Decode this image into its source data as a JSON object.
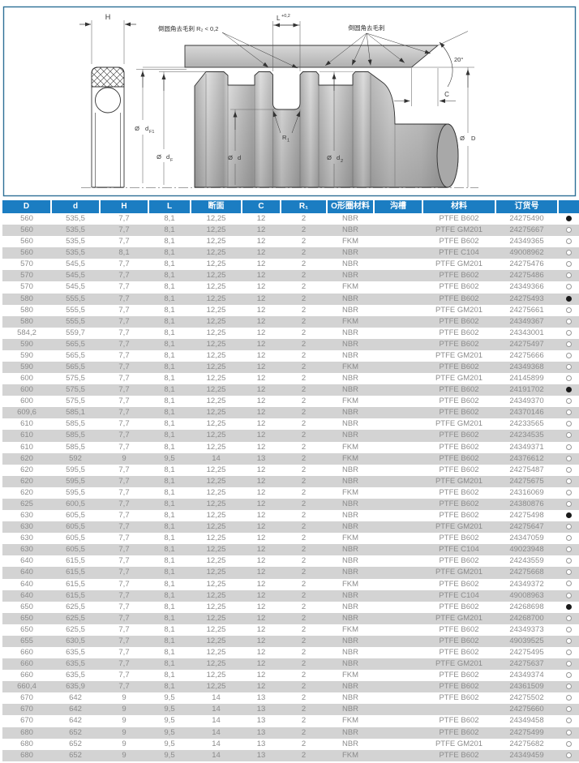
{
  "colors": {
    "header_bg": "#1b7dc2",
    "header_text": "#ffffff",
    "row_alt": "#d3d3d3",
    "table_text": "#8c8c8c",
    "panel_border": "#2e7096",
    "dot_filled": "#1a1a1a",
    "dot_empty_border": "#999999",
    "diagram_line": "#333333"
  },
  "diagram": {
    "notes": {
      "left": "倒圆角去毛刺  R₂ < 0,2",
      "right": "倒圆角去毛刺"
    },
    "dims": {
      "h": "H",
      "l": "L",
      "l_tol": "+0,2",
      "angle": "20°",
      "c": "C",
      "r1": "R",
      "r1_sub": "1",
      "dia": "Ø",
      "df1": "d",
      "df1_sub": "F1",
      "df": "d",
      "df_sub": "F",
      "d": "d",
      "d2": "d",
      "d2_sub": "2",
      "D": "D"
    }
  },
  "table": {
    "columns": [
      "D",
      "d",
      "H",
      "L",
      "断面",
      "C",
      "R₁",
      "O形圈材料",
      "沟槽",
      "材料",
      "订货号",
      ""
    ],
    "rows": [
      [
        "560",
        "535,5",
        "7,7",
        "8,1",
        "12,25",
        "12",
        "2",
        "NBR",
        "",
        "PTFE B602",
        "24275490",
        "●"
      ],
      [
        "560",
        "535,5",
        "7,7",
        "8,1",
        "12,25",
        "12",
        "2",
        "NBR",
        "",
        "PTFE GM201",
        "24275667",
        "○"
      ],
      [
        "560",
        "535,5",
        "7,7",
        "8,1",
        "12,25",
        "12",
        "2",
        "FKM",
        "",
        "PTFE B602",
        "24349365",
        "○"
      ],
      [
        "560",
        "535,5",
        "8,1",
        "8,1",
        "12,25",
        "12",
        "2",
        "NBR",
        "",
        "PTFE C104",
        "49008962",
        "○"
      ],
      [
        "570",
        "545,5",
        "7,7",
        "8,1",
        "12,25",
        "12",
        "2",
        "NBR",
        "",
        "PTFE GM201",
        "24275476",
        "○"
      ],
      [
        "570",
        "545,5",
        "7,7",
        "8,1",
        "12,25",
        "12",
        "2",
        "NBR",
        "",
        "PTFE B602",
        "24275486",
        "○"
      ],
      [
        "570",
        "545,5",
        "7,7",
        "8,1",
        "12,25",
        "12",
        "2",
        "FKM",
        "",
        "PTFE B602",
        "24349366",
        "○"
      ],
      [
        "580",
        "555,5",
        "7,7",
        "8,1",
        "12,25",
        "12",
        "2",
        "NBR",
        "",
        "PTFE B602",
        "24275493",
        "●"
      ],
      [
        "580",
        "555,5",
        "7,7",
        "8,1",
        "12,25",
        "12",
        "2",
        "NBR",
        "",
        "PTFE GM201",
        "24275661",
        "○"
      ],
      [
        "580",
        "555,5",
        "7,7",
        "8,1",
        "12,25",
        "12",
        "2",
        "FKM",
        "",
        "PTFE B602",
        "24349367",
        "○"
      ],
      [
        "584,2",
        "559,7",
        "7,7",
        "8,1",
        "12,25",
        "12",
        "2",
        "NBR",
        "",
        "PTFE B602",
        "24343001",
        "○"
      ],
      [
        "590",
        "565,5",
        "7,7",
        "8,1",
        "12,25",
        "12",
        "2",
        "NBR",
        "",
        "PTFE B602",
        "24275497",
        "○"
      ],
      [
        "590",
        "565,5",
        "7,7",
        "8,1",
        "12,25",
        "12",
        "2",
        "NBR",
        "",
        "PTFE GM201",
        "24275666",
        "○"
      ],
      [
        "590",
        "565,5",
        "7,7",
        "8,1",
        "12,25",
        "12",
        "2",
        "FKM",
        "",
        "PTFE B602",
        "24349368",
        "○"
      ],
      [
        "600",
        "575,5",
        "7,7",
        "8,1",
        "12,25",
        "12",
        "2",
        "NBR",
        "",
        "PTFE GM201",
        "24145899",
        "○"
      ],
      [
        "600",
        "575,5",
        "7,7",
        "8,1",
        "12,25",
        "12",
        "2",
        "NBR",
        "",
        "PTFE B602",
        "24191702",
        "●"
      ],
      [
        "600",
        "575,5",
        "7,7",
        "8,1",
        "12,25",
        "12",
        "2",
        "FKM",
        "",
        "PTFE B602",
        "24349370",
        "○"
      ],
      [
        "609,6",
        "585,1",
        "7,7",
        "8,1",
        "12,25",
        "12",
        "2",
        "NBR",
        "",
        "PTFE B602",
        "24370146",
        "○"
      ],
      [
        "610",
        "585,5",
        "7,7",
        "8,1",
        "12,25",
        "12",
        "2",
        "NBR",
        "",
        "PTFE GM201",
        "24233565",
        "○"
      ],
      [
        "610",
        "585,5",
        "7,7",
        "8,1",
        "12,25",
        "12",
        "2",
        "NBR",
        "",
        "PTFE B602",
        "24234535",
        "○"
      ],
      [
        "610",
        "585,5",
        "7,7",
        "8,1",
        "12,25",
        "12",
        "2",
        "FKM",
        "",
        "PTFE B602",
        "24349371",
        "○"
      ],
      [
        "620",
        "592",
        "9",
        "9,5",
        "14",
        "13",
        "2",
        "FKM",
        "",
        "PTFE B602",
        "24376612",
        "○"
      ],
      [
        "620",
        "595,5",
        "7,7",
        "8,1",
        "12,25",
        "12",
        "2",
        "NBR",
        "",
        "PTFE B602",
        "24275487",
        "○"
      ],
      [
        "620",
        "595,5",
        "7,7",
        "8,1",
        "12,25",
        "12",
        "2",
        "NBR",
        "",
        "PTFE GM201",
        "24275675",
        "○"
      ],
      [
        "620",
        "595,5",
        "7,7",
        "8,1",
        "12,25",
        "12",
        "2",
        "FKM",
        "",
        "PTFE B602",
        "24316069",
        "○"
      ],
      [
        "625",
        "600,5",
        "7,7",
        "8,1",
        "12,25",
        "12",
        "2",
        "NBR",
        "",
        "PTFE B602",
        "24380876",
        "○"
      ],
      [
        "630",
        "605,5",
        "7,7",
        "8,1",
        "12,25",
        "12",
        "2",
        "NBR",
        "",
        "PTFE B602",
        "24275498",
        "●"
      ],
      [
        "630",
        "605,5",
        "7,7",
        "8,1",
        "12,25",
        "12",
        "2",
        "NBR",
        "",
        "PTFE GM201",
        "24275647",
        "○"
      ],
      [
        "630",
        "605,5",
        "7,7",
        "8,1",
        "12,25",
        "12",
        "2",
        "FKM",
        "",
        "PTFE B602",
        "24347059",
        "○"
      ],
      [
        "630",
        "605,5",
        "7,7",
        "8,1",
        "12,25",
        "12",
        "2",
        "NBR",
        "",
        "PTFE C104",
        "49023948",
        "○"
      ],
      [
        "640",
        "615,5",
        "7,7",
        "8,1",
        "12,25",
        "12",
        "2",
        "NBR",
        "",
        "PTFE B602",
        "24243559",
        "○"
      ],
      [
        "640",
        "615,5",
        "7,7",
        "8,1",
        "12,25",
        "12",
        "2",
        "NBR",
        "",
        "PTFE GM201",
        "24275668",
        "○"
      ],
      [
        "640",
        "615,5",
        "7,7",
        "8,1",
        "12,25",
        "12",
        "2",
        "FKM",
        "",
        "PTFE B602",
        "24349372",
        "○"
      ],
      [
        "640",
        "615,5",
        "7,7",
        "8,1",
        "12,25",
        "12",
        "2",
        "NBR",
        "",
        "PTFE C104",
        "49008963",
        "○"
      ],
      [
        "650",
        "625,5",
        "7,7",
        "8,1",
        "12,25",
        "12",
        "2",
        "NBR",
        "",
        "PTFE B602",
        "24268698",
        "●"
      ],
      [
        "650",
        "625,5",
        "7,7",
        "8,1",
        "12,25",
        "12",
        "2",
        "NBR",
        "",
        "PTFE GM201",
        "24268700",
        "○"
      ],
      [
        "650",
        "625,5",
        "7,7",
        "8,1",
        "12,25",
        "12",
        "2",
        "FKM",
        "",
        "PTFE B602",
        "24349373",
        "○"
      ],
      [
        "655",
        "630,5",
        "7,7",
        "8,1",
        "12,25",
        "12",
        "2",
        "NBR",
        "",
        "PTFE B602",
        "49039525",
        "○"
      ],
      [
        "660",
        "635,5",
        "7,7",
        "8,1",
        "12,25",
        "12",
        "2",
        "NBR",
        "",
        "PTFE B602",
        "24275495",
        "○"
      ],
      [
        "660",
        "635,5",
        "7,7",
        "8,1",
        "12,25",
        "12",
        "2",
        "NBR",
        "",
        "PTFE GM201",
        "24275637",
        "○"
      ],
      [
        "660",
        "635,5",
        "7,7",
        "8,1",
        "12,25",
        "12",
        "2",
        "FKM",
        "",
        "PTFE B602",
        "24349374",
        "○"
      ],
      [
        "660,4",
        "635,9",
        "7,7",
        "8,1",
        "12,25",
        "12",
        "2",
        "NBR",
        "",
        "PTFE B602",
        "24361509",
        "○"
      ],
      [
        "670",
        "642",
        "9",
        "9,5",
        "14",
        "13",
        "2",
        "NBR",
        "",
        "PTFE B602",
        "24275502",
        "○"
      ],
      [
        "670",
        "642",
        "9",
        "9,5",
        "14",
        "13",
        "2",
        "NBR",
        "",
        "",
        "24275660",
        "○"
      ],
      [
        "670",
        "642",
        "9",
        "9,5",
        "14",
        "13",
        "2",
        "FKM",
        "",
        "PTFE B602",
        "24349458",
        "○"
      ],
      [
        "680",
        "652",
        "9",
        "9,5",
        "14",
        "13",
        "2",
        "NBR",
        "",
        "PTFE B602",
        "24275499",
        "○"
      ],
      [
        "680",
        "652",
        "9",
        "9,5",
        "14",
        "13",
        "2",
        "NBR",
        "",
        "PTFE GM201",
        "24275682",
        "○"
      ],
      [
        "680",
        "652",
        "9",
        "9,5",
        "14",
        "13",
        "2",
        "FKM",
        "",
        "PTFE B602",
        "24349459",
        "○"
      ]
    ]
  }
}
